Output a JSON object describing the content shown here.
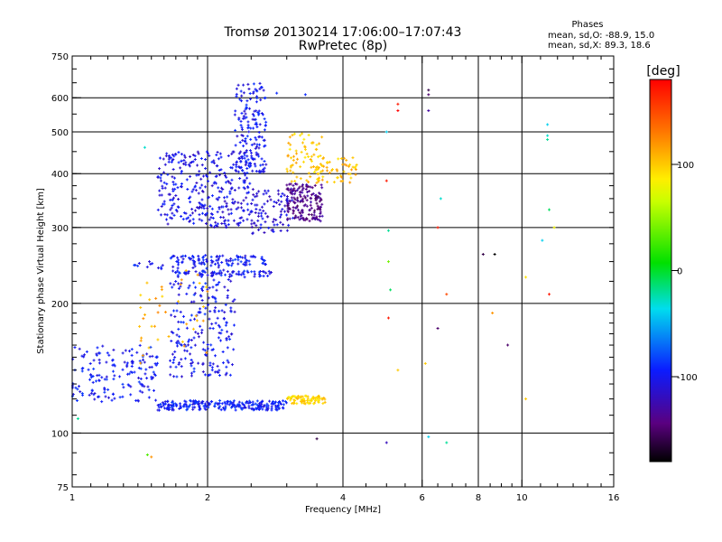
{
  "chart_data": {
    "type": "scatter",
    "title": "Tromsø 20130214 17:06:00–17:07:43",
    "subtitle": "RwPretec (8p)",
    "xlabel": "Frequency [MHz]",
    "ylabel": "Stationary phase Virtual Height [km]",
    "x_scale": "log",
    "y_scale": "log",
    "xlim": [
      1,
      16
    ],
    "ylim": [
      75,
      750
    ],
    "x_ticks": [
      1,
      2,
      4,
      6,
      8,
      10,
      16
    ],
    "x_tick_labels": [
      "1",
      "2",
      "4",
      "6",
      "8",
      "10",
      "16"
    ],
    "y_ticks": [
      75,
      100,
      200,
      300,
      400,
      500,
      600,
      750
    ],
    "y_tick_labels": [
      "75",
      "100",
      "200",
      "300",
      "400",
      "500",
      "600",
      "750"
    ],
    "grid_x": [
      1,
      2,
      4,
      6,
      8,
      10,
      16
    ],
    "grid_y": [
      100,
      200,
      300,
      400,
      500,
      600
    ],
    "phase_info": {
      "heading": "Phases",
      "line_o": "mean, sd,O: -88.9, 15.0",
      "line_x": "mean, sd,X:  89.3, 18.6"
    },
    "colorbar": {
      "label": "[deg]",
      "range": [
        -180,
        180
      ],
      "ticks": [
        -100,
        0,
        100
      ],
      "tick_labels": [
        "-100",
        "0",
        "100"
      ]
    },
    "clusters": [
      {
        "f": [
          1.0,
          1.55
        ],
        "h": [
          118,
          160
        ],
        "phase": -98,
        "n": 160
      },
      {
        "f": [
          1.55,
          3.0
        ],
        "h": [
          113,
          119
        ],
        "phase": -95,
        "n": 240
      },
      {
        "f": [
          3.0,
          3.65
        ],
        "h": [
          117,
          122
        ],
        "phase": 95,
        "n": 90
      },
      {
        "f": [
          1.65,
          2.3
        ],
        "h": [
          135,
          260
        ],
        "phase": -100,
        "n": 260
      },
      {
        "f": [
          1.65,
          2.7
        ],
        "h": [
          245,
          258
        ],
        "phase": -98,
        "n": 70
      },
      {
        "f": [
          1.7,
          2.8
        ],
        "h": [
          230,
          238
        ],
        "phase": -98,
        "n": 60
      },
      {
        "f": [
          1.55,
          2.5
        ],
        "h": [
          300,
          450
        ],
        "phase": -105,
        "n": 320
      },
      {
        "f": [
          2.3,
          2.7
        ],
        "h": [
          400,
          650
        ],
        "phase": -100,
        "n": 170
      },
      {
        "f": [
          2.5,
          3.1
        ],
        "h": [
          290,
          370
        ],
        "phase": -110,
        "n": 90
      },
      {
        "f": [
          3.0,
          3.6
        ],
        "h": [
          310,
          380
        ],
        "phase": -140,
        "n": 160
      },
      {
        "f": [
          3.0,
          3.6
        ],
        "h": [
          380,
          500
        ],
        "phase": 100,
        "n": 70
      },
      {
        "f": [
          3.5,
          4.3
        ],
        "h": [
          380,
          440
        ],
        "phase": 105,
        "n": 55
      },
      {
        "f": [
          1.4,
          2.0
        ],
        "h": [
          145,
          240
        ],
        "phase": 110,
        "n": 40
      },
      {
        "f": [
          1.3,
          1.6
        ],
        "h": [
          240,
          250
        ],
        "phase": -98,
        "n": 12
      }
    ],
    "scattered_points": [
      {
        "f": 1.03,
        "h": 108,
        "phase": -20
      },
      {
        "f": 1.47,
        "h": 89,
        "phase": 30
      },
      {
        "f": 1.5,
        "h": 88,
        "phase": 120
      },
      {
        "f": 1.45,
        "h": 460,
        "phase": -30
      },
      {
        "f": 2.85,
        "h": 615,
        "phase": -90
      },
      {
        "f": 3.3,
        "h": 610,
        "phase": -90
      },
      {
        "f": 3.5,
        "h": 97,
        "phase": -160
      },
      {
        "f": 5.0,
        "h": 95,
        "phase": -120
      },
      {
        "f": 5.3,
        "h": 580,
        "phase": 170
      },
      {
        "f": 5.3,
        "h": 560,
        "phase": 180
      },
      {
        "f": 5.0,
        "h": 500,
        "phase": -40
      },
      {
        "f": 5.0,
        "h": 385,
        "phase": 170
      },
      {
        "f": 5.05,
        "h": 295,
        "phase": -20
      },
      {
        "f": 5.05,
        "h": 250,
        "phase": 40
      },
      {
        "f": 5.1,
        "h": 215,
        "phase": -10
      },
      {
        "f": 5.05,
        "h": 185,
        "phase": 170
      },
      {
        "f": 5.3,
        "h": 140,
        "phase": 100
      },
      {
        "f": 6.2,
        "h": 625,
        "phase": -160
      },
      {
        "f": 6.2,
        "h": 610,
        "phase": -150
      },
      {
        "f": 6.2,
        "h": 560,
        "phase": -130
      },
      {
        "f": 6.6,
        "h": 350,
        "phase": -30
      },
      {
        "f": 6.5,
        "h": 300,
        "phase": 170
      },
      {
        "f": 6.8,
        "h": 210,
        "phase": 150
      },
      {
        "f": 6.5,
        "h": 175,
        "phase": -150
      },
      {
        "f": 6.2,
        "h": 98,
        "phase": -40
      },
      {
        "f": 6.8,
        "h": 95,
        "phase": -20
      },
      {
        "f": 6.1,
        "h": 145,
        "phase": 100
      },
      {
        "f": 8.2,
        "h": 260,
        "phase": -160
      },
      {
        "f": 8.7,
        "h": 260,
        "phase": -180
      },
      {
        "f": 8.6,
        "h": 190,
        "phase": 120
      },
      {
        "f": 9.3,
        "h": 160,
        "phase": -150
      },
      {
        "f": 10.2,
        "h": 230,
        "phase": 90
      },
      {
        "f": 10.2,
        "h": 120,
        "phase": 100
      },
      {
        "f": 11.4,
        "h": 520,
        "phase": -40
      },
      {
        "f": 11.4,
        "h": 490,
        "phase": -30
      },
      {
        "f": 11.4,
        "h": 480,
        "phase": -20
      },
      {
        "f": 11.5,
        "h": 330,
        "phase": -10
      },
      {
        "f": 11.1,
        "h": 280,
        "phase": -40
      },
      {
        "f": 11.5,
        "h": 210,
        "phase": 170
      },
      {
        "f": 11.8,
        "h": 300,
        "phase": 80
      }
    ]
  }
}
